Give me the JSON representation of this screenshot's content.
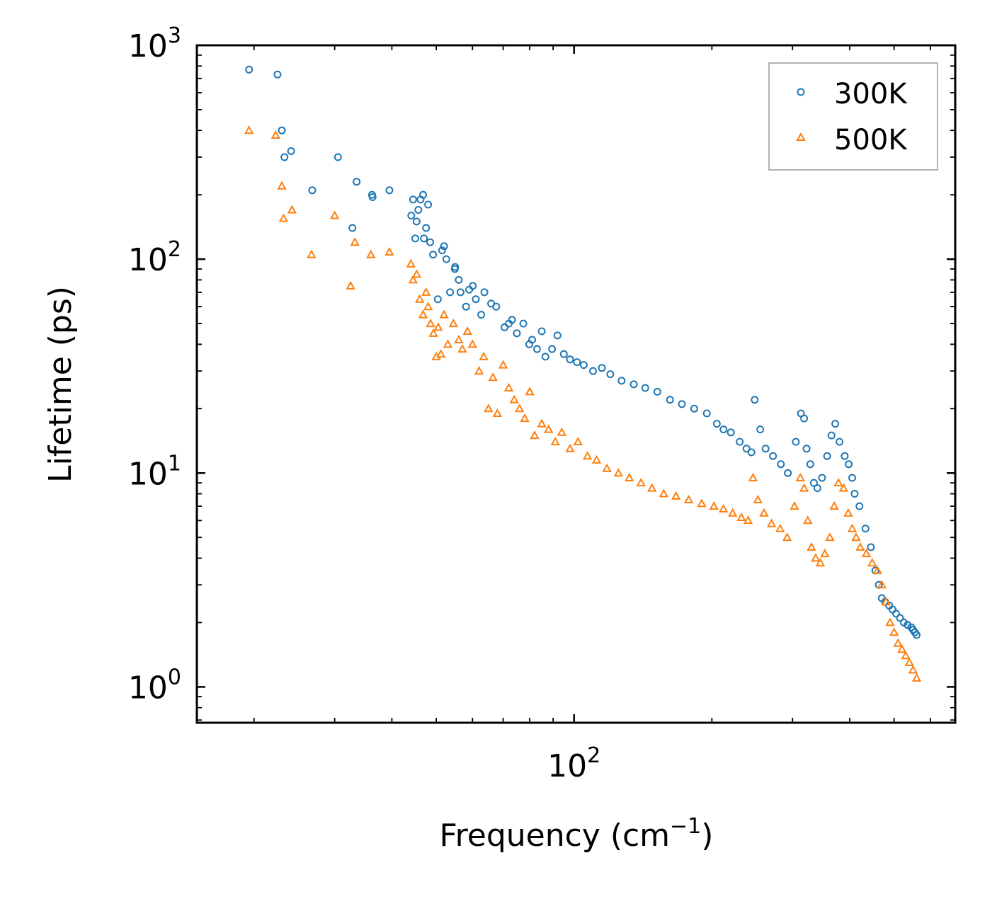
{
  "chart_data": {
    "type": "scatter",
    "xscale": "log",
    "yscale": "log",
    "xlim": [
      15,
      680
    ],
    "ylim": [
      0.68,
      1000
    ],
    "xlabel": "Frequency (cm",
    "xlabel_sup": "−1",
    "xlabel_close": ")",
    "ylabel": "Lifetime (ps)",
    "x_ticks": [
      {
        "base": "10",
        "exp": "2",
        "value": 100
      }
    ],
    "y_ticks": [
      {
        "base": "10",
        "exp": "0",
        "value": 1
      },
      {
        "base": "10",
        "exp": "1",
        "value": 10
      },
      {
        "base": "10",
        "exp": "2",
        "value": 100
      },
      {
        "base": "10",
        "exp": "3",
        "value": 1000
      }
    ],
    "legend_position": "top-right",
    "series": [
      {
        "name": "300K",
        "marker": "circle",
        "color": "#1f77b4",
        "x": [
          19.5,
          22.5,
          23,
          23.3,
          24.1,
          26.8,
          30.5,
          32.8,
          33.5,
          36.2,
          36.3,
          39.5,
          44.1,
          44.5,
          45.0,
          45.3,
          45.7,
          46.2,
          46.8,
          47.0,
          47.5,
          48.0,
          48.5,
          49.2,
          50.4,
          51.5,
          52.0,
          52.6,
          53.6,
          54.9,
          55.0,
          56.0,
          56.5,
          58.1,
          59.0,
          60.1,
          61.0,
          62.7,
          63.7,
          65.9,
          67.6,
          70.5,
          72.0,
          73.2,
          75.0,
          77.5,
          79.8,
          81.0,
          83.0,
          85.0,
          86.6,
          89.5,
          92.0,
          95.0,
          98.0,
          101.5,
          105.0,
          110.0,
          115.0,
          120.0,
          127.0,
          135.0,
          143.0,
          152.0,
          162.0,
          172.0,
          183.0,
          195.0,
          205.0,
          212.0,
          220.0,
          230.0,
          238.0,
          244.0,
          248.0,
          255.0,
          262.0,
          272.0,
          283.0,
          293.0,
          305.0,
          313.0,
          318.0,
          322.0,
          328.0,
          334.0,
          340.0,
          348.0,
          357.0,
          365.0,
          372.0,
          380.0,
          390.0,
          398.0,
          405.0,
          410.0,
          420.0,
          433.0,
          445.0,
          455.0,
          463.0,
          470.0,
          478.0,
          488.0,
          496.0,
          505.0,
          515.0,
          525.0,
          535.0,
          545.0,
          550.0,
          555.0,
          560.0
        ],
        "y": [
          770,
          730,
          400,
          300,
          320,
          210,
          300,
          140,
          230,
          200,
          195,
          210,
          160,
          190,
          125,
          150,
          170,
          190,
          200,
          125,
          140,
          180,
          120,
          105,
          65,
          110,
          115,
          100,
          70,
          90,
          92,
          80,
          70,
          60,
          72,
          75,
          65,
          55,
          70,
          62,
          60,
          48,
          50,
          52,
          45,
          50,
          40,
          42,
          38,
          46,
          35,
          38,
          44,
          36,
          34,
          33,
          32,
          30,
          31,
          29,
          27,
          26,
          25,
          24,
          22,
          21,
          20,
          19,
          17,
          16,
          15.5,
          14,
          13,
          12.5,
          22,
          16,
          13,
          12,
          11,
          10,
          14,
          19,
          18,
          13,
          11,
          9,
          8.5,
          9.5,
          12,
          15,
          17,
          14,
          12,
          11,
          9.5,
          8,
          7,
          5.5,
          4.5,
          3.5,
          3.0,
          2.6,
          2.5,
          2.4,
          2.3,
          2.2,
          2.1,
          2.0,
          1.95,
          1.9,
          1.85,
          1.8,
          1.75
        ]
      },
      {
        "name": "500K",
        "marker": "triangle",
        "color": "#ff7f0e",
        "x": [
          19.5,
          22.3,
          23.0,
          23.2,
          24.2,
          26.7,
          30.0,
          32.5,
          33.2,
          36.0,
          39.5,
          44.0,
          44.5,
          45.3,
          46.0,
          46.8,
          47.5,
          48.0,
          48.6,
          49.3,
          50.0,
          50.5,
          51.2,
          52.0,
          53.0,
          54.5,
          56.0,
          57.0,
          58.5,
          60.0,
          62.0,
          63.5,
          65.0,
          66.5,
          68.0,
          70.0,
          72.0,
          74.0,
          76.0,
          78.0,
          80.0,
          82.0,
          85.0,
          88.0,
          91.0,
          94.0,
          98.0,
          102.0,
          107.0,
          112.0,
          118.0,
          125.0,
          132.0,
          140.0,
          148.0,
          157.0,
          167.0,
          178.0,
          190.0,
          202.0,
          212.0,
          222.0,
          232.0,
          240.0,
          246.0,
          252.0,
          260.0,
          270.0,
          282.0,
          292.0,
          303.0,
          312.0,
          318.0,
          324.0,
          330.0,
          337.0,
          345.0,
          353.0,
          362.0,
          370.0,
          378.0,
          388.0,
          397.0,
          405.0,
          413.0,
          422.0,
          435.0,
          448.0,
          460.0,
          470.0,
          480.0,
          490.0,
          500.0,
          510.0,
          520.0,
          530.0,
          540.0,
          550.0,
          560.0
        ],
        "y": [
          400,
          380,
          220,
          155,
          170,
          105,
          160,
          75,
          120,
          105,
          108,
          95,
          80,
          85,
          65,
          55,
          70,
          60,
          50,
          45,
          35,
          48,
          36,
          55,
          40,
          50,
          42,
          38,
          46,
          40,
          30,
          35,
          20,
          28,
          19,
          32,
          25,
          22,
          20,
          18,
          24,
          15,
          17,
          16,
          14,
          15.5,
          13,
          14,
          12,
          11.5,
          10.5,
          10,
          9.5,
          9,
          8.5,
          8,
          7.8,
          7.5,
          7.2,
          7,
          6.8,
          6.5,
          6.2,
          6,
          9.5,
          7.5,
          6.5,
          5.8,
          5.5,
          5.0,
          7.0,
          9.5,
          8.5,
          6.0,
          4.5,
          4.0,
          3.8,
          4.2,
          5.0,
          7.0,
          9.0,
          8.5,
          6.5,
          5.5,
          5.0,
          4.5,
          4.2,
          3.8,
          3.5,
          3.0,
          2.5,
          2.0,
          1.8,
          1.6,
          1.5,
          1.4,
          1.3,
          1.2,
          1.1
        ]
      }
    ]
  }
}
